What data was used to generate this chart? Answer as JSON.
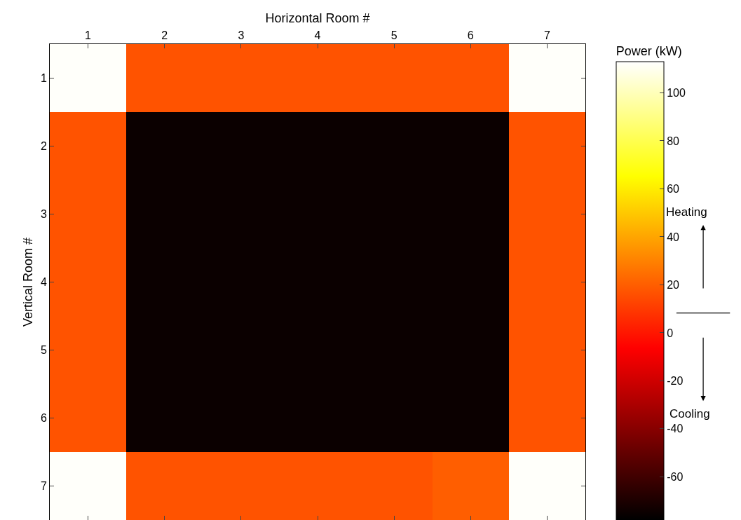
{
  "chart_data": {
    "type": "heatmap",
    "xlabel": "Horizontal Room #",
    "ylabel": "Vertical Room #",
    "clabel": "Power (kW)",
    "categories": [
      "1",
      "2",
      "3",
      "4",
      "5",
      "6",
      "7"
    ],
    "y_categories": [
      "1",
      "2",
      "3",
      "4",
      "5",
      "6",
      "7"
    ],
    "cells": [
      [
        112,
        17,
        17,
        17,
        17,
        17,
        112
      ],
      [
        17,
        -75,
        -75,
        -75,
        -75,
        -75,
        17
      ],
      [
        17,
        -75,
        -75,
        -75,
        -75,
        -75,
        17
      ],
      [
        17,
        -75,
        -75,
        -75,
        -75,
        -75,
        17
      ],
      [
        17,
        -75,
        -75,
        -75,
        -75,
        -75,
        17
      ],
      [
        17,
        -75,
        -75,
        -75,
        -75,
        -75,
        17
      ],
      [
        112,
        17,
        17,
        17,
        17,
        20,
        112
      ]
    ],
    "clim": [
      -78,
      113
    ],
    "cticks": [
      -60,
      -40,
      -20,
      0,
      20,
      40,
      60,
      80,
      100
    ],
    "annotations": [
      "Heating",
      "Cooling"
    ]
  }
}
